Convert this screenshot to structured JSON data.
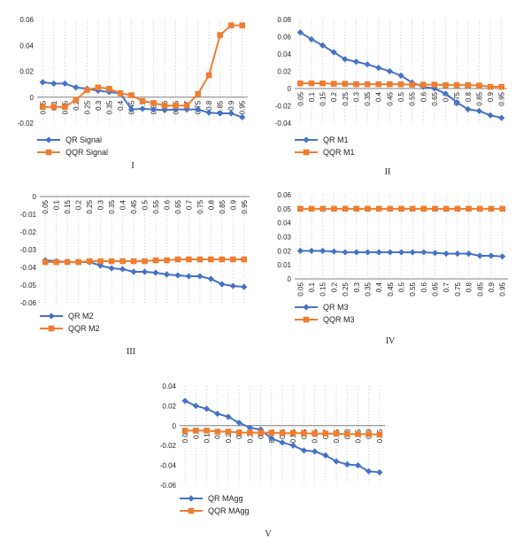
{
  "colors": {
    "qr": "#4472C4",
    "qqr": "#ED7D31",
    "grid": "#BFBFBF",
    "axis": "#7F7F7F"
  },
  "chart_data": [
    {
      "panel_label": "I",
      "type": "line",
      "x_range": [
        0.05,
        0.95
      ],
      "ylim": [
        -0.02,
        0.06
      ],
      "yticks": [
        "0.06",
        "0.04",
        "0.02",
        "0",
        "-0.02"
      ],
      "xticks": [
        "0.05",
        "0.1",
        "0.15",
        "0.2",
        "0.25",
        "0.3",
        "0.35",
        "0.4",
        "0.45",
        "0.5",
        "0.55",
        "0.6",
        "0.65",
        "0.7",
        "0.75",
        "0.8",
        "0.85",
        "0.9",
        "0.95"
      ],
      "series": [
        {
          "name": "QR Signal",
          "color": "#4472C4",
          "marker": "diamond",
          "x": [
            0.05,
            0.1,
            0.15,
            0.2,
            0.25,
            0.3,
            0.35,
            0.4,
            0.45,
            0.5,
            0.55,
            0.6,
            0.65,
            0.7,
            0.75,
            0.8,
            0.85,
            0.9,
            0.95
          ],
          "y": [
            0.0115,
            0.0105,
            0.0105,
            0.0075,
            0.0065,
            0.005,
            0.004,
            0.003,
            -0.0095,
            -0.009,
            -0.0095,
            -0.01,
            -0.0095,
            -0.0095,
            -0.0095,
            -0.012,
            -0.0125,
            -0.0125,
            -0.0155
          ]
        },
        {
          "name": "QQR Signal",
          "color": "#ED7D31",
          "marker": "square",
          "x": [
            0.05,
            0.1,
            0.15,
            0.2,
            0.25,
            0.3,
            0.35,
            0.4,
            0.45,
            0.5,
            0.55,
            0.6,
            0.65,
            0.7,
            0.75,
            0.8,
            0.85,
            0.9,
            0.95
          ],
          "y": [
            -0.0075,
            -0.0075,
            -0.0075,
            -0.002,
            0.0055,
            0.0075,
            0.0065,
            0.003,
            0.0015,
            -0.003,
            -0.0045,
            -0.0065,
            -0.0065,
            -0.0065,
            0.0025,
            0.017,
            0.048,
            0.0555,
            0.0555
          ]
        }
      ]
    },
    {
      "panel_label": "II",
      "type": "line",
      "x_range": [
        0.05,
        0.95
      ],
      "ylim": [
        -0.04,
        0.08
      ],
      "yticks": [
        "0.08",
        "0.06",
        "0.04",
        "0.02",
        "0",
        "-0.02",
        "-0.04"
      ],
      "xticks": [
        "0.05",
        "0.1",
        "0.15",
        "0.2",
        "0.25",
        "0.3",
        "0.35",
        "0.4",
        "0.45",
        "0.5",
        "0.55",
        "0.6",
        "0.65",
        "0.7",
        "0.75",
        "0.8",
        "0.85",
        "0.9",
        "0.95"
      ],
      "series": [
        {
          "name": "QR M1",
          "color": "#4472C4",
          "marker": "diamond",
          "x": [
            0.05,
            0.1,
            0.15,
            0.2,
            0.25,
            0.3,
            0.35,
            0.4,
            0.45,
            0.5,
            0.55,
            0.6,
            0.65,
            0.7,
            0.75,
            0.8,
            0.85,
            0.9,
            0.95
          ],
          "y": [
            0.065,
            0.057,
            0.05,
            0.042,
            0.034,
            0.031,
            0.028,
            0.024,
            0.02,
            0.015,
            0.007,
            0.002,
            0.0,
            -0.006,
            -0.016,
            -0.024,
            -0.026,
            -0.031,
            -0.034
          ]
        },
        {
          "name": "QQR M1",
          "color": "#ED7D31",
          "marker": "square",
          "x": [
            0.05,
            0.1,
            0.15,
            0.2,
            0.25,
            0.3,
            0.35,
            0.4,
            0.45,
            0.5,
            0.55,
            0.6,
            0.65,
            0.7,
            0.75,
            0.8,
            0.85,
            0.9,
            0.95
          ],
          "y": [
            0.006,
            0.006,
            0.006,
            0.0055,
            0.0055,
            0.005,
            0.005,
            0.005,
            0.005,
            0.005,
            0.0045,
            0.0045,
            0.0045,
            0.004,
            0.004,
            0.004,
            0.0035,
            0.002,
            0.002
          ]
        }
      ]
    },
    {
      "panel_label": "III",
      "type": "line",
      "x_range": [
        0.05,
        0.95
      ],
      "ylim": [
        -0.06,
        0.0
      ],
      "yticks": [
        "0",
        "-0.01",
        "-0.02",
        "-0.03",
        "-0.04",
        "-0.05",
        "-0.06"
      ],
      "xticks": [
        "0.05",
        "0.1",
        "0.15",
        "0.2",
        "0.25",
        "0.3",
        "0.35",
        "0.4",
        "0.45",
        "0.5",
        "0.55",
        "0.6",
        "0.65",
        "0.7",
        "0.75",
        "0.8",
        "0.85",
        "0.9",
        "0.95"
      ],
      "series": [
        {
          "name": "QR M2",
          "color": "#4472C4",
          "marker": "diamond",
          "x": [
            0.05,
            0.1,
            0.15,
            0.2,
            0.25,
            0.3,
            0.35,
            0.4,
            0.45,
            0.5,
            0.55,
            0.6,
            0.65,
            0.7,
            0.75,
            0.8,
            0.85,
            0.9,
            0.95
          ],
          "y": [
            -0.036,
            -0.0365,
            -0.037,
            -0.037,
            -0.037,
            -0.039,
            -0.0405,
            -0.041,
            -0.0425,
            -0.0425,
            -0.043,
            -0.044,
            -0.0445,
            -0.045,
            -0.045,
            -0.0465,
            -0.0495,
            -0.0505,
            -0.051
          ]
        },
        {
          "name": "QQR M2",
          "color": "#ED7D31",
          "marker": "square",
          "x": [
            0.05,
            0.1,
            0.15,
            0.2,
            0.25,
            0.3,
            0.35,
            0.4,
            0.45,
            0.5,
            0.55,
            0.6,
            0.65,
            0.7,
            0.75,
            0.8,
            0.85,
            0.9,
            0.95
          ],
          "y": [
            -0.037,
            -0.037,
            -0.037,
            -0.037,
            -0.0365,
            -0.0365,
            -0.0365,
            -0.0365,
            -0.0365,
            -0.0365,
            -0.036,
            -0.036,
            -0.0355,
            -0.0355,
            -0.0355,
            -0.0355,
            -0.0355,
            -0.0355,
            -0.0355
          ]
        }
      ]
    },
    {
      "panel_label": "IV",
      "type": "line",
      "x_range": [
        0.05,
        0.95
      ],
      "ylim": [
        0.0,
        0.06
      ],
      "yticks": [
        "0.06",
        "0.05",
        "0.04",
        "0.03",
        "0.02",
        "0.01",
        "0"
      ],
      "xticks": [
        "0.05",
        "0.1",
        "0.15",
        "0.2",
        "0.25",
        "0.3",
        "0.35",
        "0.4",
        "0.45",
        "0.5",
        "0.55",
        "0.6",
        "0.65",
        "0.7",
        "0.75",
        "0.8",
        "0.85",
        "0.9",
        "0.95"
      ],
      "series": [
        {
          "name": "QR M3",
          "color": "#4472C4",
          "marker": "diamond",
          "x": [
            0.05,
            0.1,
            0.15,
            0.2,
            0.25,
            0.3,
            0.35,
            0.4,
            0.45,
            0.5,
            0.55,
            0.6,
            0.65,
            0.7,
            0.75,
            0.8,
            0.85,
            0.9,
            0.95
          ],
          "y": [
            0.02,
            0.02,
            0.02,
            0.0195,
            0.019,
            0.019,
            0.019,
            0.019,
            0.019,
            0.019,
            0.019,
            0.019,
            0.0185,
            0.018,
            0.018,
            0.018,
            0.0165,
            0.0165,
            0.016
          ]
        },
        {
          "name": "QQR M3",
          "color": "#ED7D31",
          "marker": "square",
          "x": [
            0.05,
            0.1,
            0.15,
            0.2,
            0.25,
            0.3,
            0.35,
            0.4,
            0.45,
            0.5,
            0.55,
            0.6,
            0.65,
            0.7,
            0.75,
            0.8,
            0.85,
            0.9,
            0.95
          ],
          "y": [
            0.05,
            0.05,
            0.05,
            0.05,
            0.05,
            0.05,
            0.05,
            0.05,
            0.05,
            0.05,
            0.05,
            0.05,
            0.05,
            0.05,
            0.05,
            0.05,
            0.05,
            0.05,
            0.05
          ]
        }
      ]
    },
    {
      "panel_label": "V",
      "type": "line",
      "x_range": [
        0.05,
        0.95
      ],
      "ylim": [
        -0.06,
        0.04
      ],
      "yticks": [
        "0.04",
        "0.02",
        "0",
        "-0.02",
        "-0.04",
        "-0.06"
      ],
      "xticks": [
        "0.05",
        "0.1",
        "0.15",
        "0.2",
        "0.25",
        "0.3",
        "0.35",
        "0.4",
        "0.45",
        "0.5",
        "0.55",
        "0.6",
        "0.65",
        "0.7",
        "0.75",
        "0.8",
        "0.85",
        "0.9",
        "0.95"
      ],
      "series": [
        {
          "name": "QR MAgg",
          "color": "#4472C4",
          "marker": "diamond",
          "x": [
            0.05,
            0.1,
            0.15,
            0.2,
            0.25,
            0.3,
            0.35,
            0.4,
            0.45,
            0.5,
            0.55,
            0.6,
            0.65,
            0.7,
            0.75,
            0.8,
            0.85,
            0.9,
            0.95
          ],
          "y": [
            0.025,
            0.02,
            0.017,
            0.012,
            0.009,
            0.003,
            -0.002,
            -0.004,
            -0.013,
            -0.017,
            -0.02,
            -0.025,
            -0.026,
            -0.03,
            -0.036,
            -0.039,
            -0.04,
            -0.046,
            -0.047
          ]
        },
        {
          "name": "QQR MAgg",
          "color": "#ED7D31",
          "marker": "square",
          "x": [
            0.05,
            0.1,
            0.15,
            0.2,
            0.25,
            0.3,
            0.35,
            0.4,
            0.45,
            0.5,
            0.55,
            0.6,
            0.65,
            0.7,
            0.75,
            0.8,
            0.85,
            0.9,
            0.95
          ],
          "y": [
            -0.005,
            -0.005,
            -0.005,
            -0.006,
            -0.006,
            -0.007,
            -0.007,
            -0.007,
            -0.007,
            -0.0075,
            -0.0075,
            -0.0075,
            -0.008,
            -0.008,
            -0.008,
            -0.0085,
            -0.0085,
            -0.0085,
            -0.009
          ]
        }
      ]
    }
  ]
}
